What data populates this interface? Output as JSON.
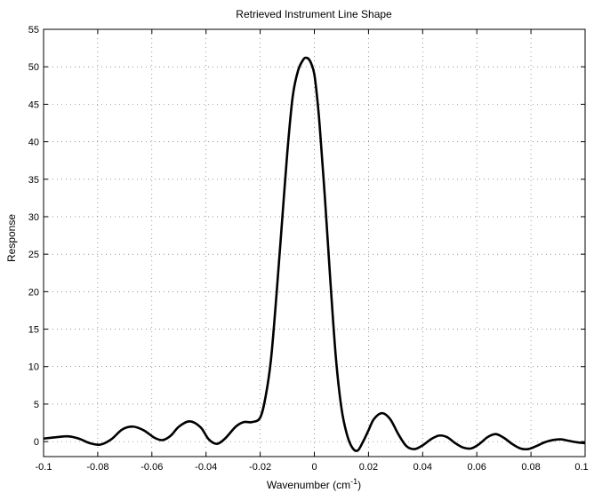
{
  "chart_data": {
    "type": "line",
    "title": "Retrieved Instrument Line Shape",
    "xlabel": {
      "text": "Wavenumber (cm",
      "sup": "-1",
      "suffix": ")"
    },
    "ylabel": "Response",
    "xlim": [
      -0.1,
      0.1
    ],
    "ylim": [
      -2,
      55
    ],
    "xticks": [
      -0.1,
      -0.08,
      -0.06,
      -0.04,
      -0.02,
      0,
      0.02,
      0.04,
      0.06,
      0.08,
      0.1
    ],
    "xtick_labels": [
      "-0.1",
      "-0.08",
      "-0.06",
      "-0.04",
      "-0.02",
      "0",
      "0.02",
      "0.04",
      "0.06",
      "0.08",
      "0.1"
    ],
    "yticks": [
      0,
      5,
      10,
      15,
      20,
      25,
      30,
      35,
      40,
      45,
      50,
      55
    ],
    "ytick_labels": [
      "0",
      "5",
      "10",
      "15",
      "20",
      "25",
      "30",
      "35",
      "40",
      "45",
      "50",
      "55"
    ],
    "grid": true,
    "line_color": "#000000",
    "series": [
      {
        "x": [
          -0.1,
          -0.095,
          -0.091,
          -0.087,
          -0.083,
          -0.079,
          -0.075,
          -0.071,
          -0.067,
          -0.063,
          -0.059,
          -0.056,
          -0.053,
          -0.05,
          -0.046,
          -0.042,
          -0.039,
          -0.036,
          -0.033,
          -0.029,
          -0.026,
          -0.023,
          -0.02,
          -0.018,
          -0.016,
          -0.014,
          -0.012,
          -0.01,
          -0.008,
          -0.006,
          -0.004,
          -0.003,
          -0.002,
          -0.001,
          0.0,
          0.001,
          0.002,
          0.004,
          0.006,
          0.008,
          0.01,
          0.012,
          0.014,
          0.016,
          0.018,
          0.02,
          0.022,
          0.025,
          0.028,
          0.031,
          0.034,
          0.037,
          0.04,
          0.043,
          0.046,
          0.049,
          0.052,
          0.055,
          0.058,
          0.061,
          0.064,
          0.067,
          0.07,
          0.073,
          0.076,
          0.079,
          0.082,
          0.085,
          0.088,
          0.091,
          0.094,
          0.097,
          0.1
        ],
        "y": [
          0.4,
          0.6,
          0.7,
          0.4,
          -0.2,
          -0.4,
          0.3,
          1.6,
          2.0,
          1.5,
          0.5,
          0.2,
          0.8,
          2.0,
          2.7,
          1.9,
          0.3,
          -0.3,
          0.4,
          2.0,
          2.6,
          2.6,
          3.2,
          6.0,
          11.0,
          19.5,
          29.0,
          38.5,
          46.0,
          49.5,
          51.0,
          51.2,
          51.0,
          50.3,
          49.0,
          46.0,
          42.0,
          32.0,
          21.0,
          11.0,
          4.5,
          1.0,
          -0.8,
          -1.2,
          0.0,
          1.5,
          3.0,
          3.8,
          3.0,
          1.0,
          -0.6,
          -1.0,
          -0.5,
          0.3,
          0.8,
          0.6,
          -0.2,
          -0.8,
          -0.9,
          -0.3,
          0.6,
          1.0,
          0.5,
          -0.3,
          -0.9,
          -1.0,
          -0.6,
          -0.1,
          0.2,
          0.3,
          0.1,
          -0.1,
          -0.2
        ]
      }
    ]
  }
}
